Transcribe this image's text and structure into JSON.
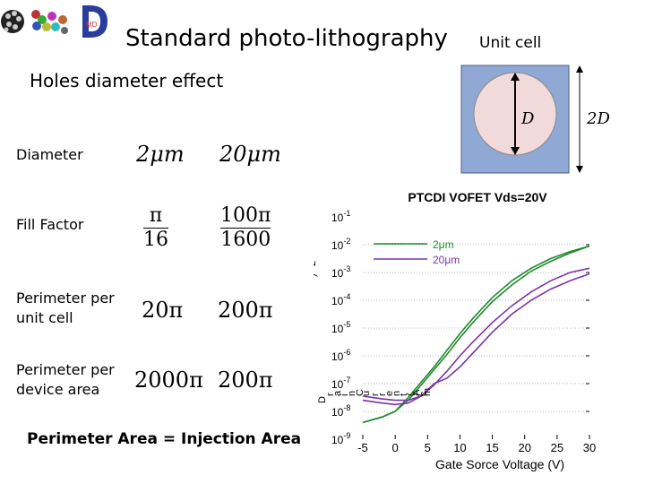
{
  "slide": {
    "title": "Standard photo-lithography",
    "subtitle": "Holes diameter effect",
    "footer": "Perimeter Area = Injection Area"
  },
  "table": {
    "rows": [
      {
        "label": "Diameter",
        "col1": "2μm",
        "col2": "20μm"
      },
      {
        "label": "Fill Factor",
        "col1_num": "π",
        "col1_den": "16",
        "col2_num": "100π",
        "col2_den": "1600"
      },
      {
        "label_line1": "Perimeter per",
        "label_line2": "unit cell",
        "col1": "20π",
        "col2": "200π"
      },
      {
        "label_line1": "Perimeter per",
        "label_line2": "device area",
        "col1": "2000π",
        "col2": "200π"
      }
    ]
  },
  "unit_cell": {
    "label": "Unit cell",
    "inner_label": "D",
    "outer_label": "2D",
    "colors": {
      "square": "#8fa9d4",
      "circle": "#f3dada"
    }
  },
  "logo": {
    "letters": "MD"
  },
  "chart_data": {
    "type": "line",
    "title": "PTCDI VOFET Vds=20V",
    "xlabel": "Gate Sorce Voltage (V)",
    "ylabel_fragments": [
      "D",
      "r",
      "a",
      "i",
      "n",
      "C",
      "u",
      "r",
      "r",
      "e",
      "n",
      "t",
      "(",
      "A",
      "/",
      "c",
      "m",
      "2",
      ")"
    ],
    "xlim": [
      -5,
      30
    ],
    "ylim_log10": [
      -9,
      -1
    ],
    "log_y": true,
    "x_ticks": [
      "-5",
      "0",
      "5",
      "10",
      "15",
      "20",
      "25",
      "30"
    ],
    "y_ticks": [
      "10-1",
      "10-2",
      "10-3",
      "10-4",
      "10-5",
      "10-6",
      "10-7",
      "10-8",
      "10-9"
    ],
    "y_tick_exps": [
      -1,
      -2,
      -3,
      -4,
      -5,
      -6,
      -7,
      -8,
      -9
    ],
    "y_tick_base": "10",
    "legend_placement": "top-left",
    "series": [
      {
        "name": "2μm",
        "color": "#1f8a2e",
        "x": [
          -5,
          -2,
          0,
          2,
          4,
          6,
          8,
          10,
          12,
          15,
          18,
          21,
          24,
          27,
          30
        ],
        "y_up": [
          -8.4,
          -8.2,
          -8.0,
          -7.6,
          -7.05,
          -6.5,
          -5.95,
          -5.35,
          -4.8,
          -4.05,
          -3.45,
          -2.95,
          -2.6,
          -2.3,
          -2.05
        ],
        "y_down": [
          -8.4,
          -8.2,
          -8.0,
          -7.5,
          -6.95,
          -6.4,
          -5.8,
          -5.2,
          -4.65,
          -3.9,
          -3.3,
          -2.85,
          -2.5,
          -2.25,
          -2.05
        ]
      },
      {
        "name": "20μm",
        "color": "#7d32a8",
        "x": [
          -5,
          -2,
          0,
          2,
          4,
          6,
          8,
          10,
          12,
          15,
          18,
          21,
          24,
          27,
          30
        ],
        "y_up": [
          -7.45,
          -7.55,
          -7.6,
          -7.6,
          -7.45,
          -7.05,
          -6.55,
          -6.0,
          -5.5,
          -4.8,
          -4.2,
          -3.7,
          -3.3,
          -3.0,
          -2.85
        ],
        "y_down": [
          -7.6,
          -7.7,
          -7.75,
          -7.7,
          -7.45,
          -7.0,
          -6.8,
          -6.4,
          -5.9,
          -5.15,
          -4.5,
          -4.0,
          -3.6,
          -3.3,
          -3.05
        ]
      }
    ]
  }
}
